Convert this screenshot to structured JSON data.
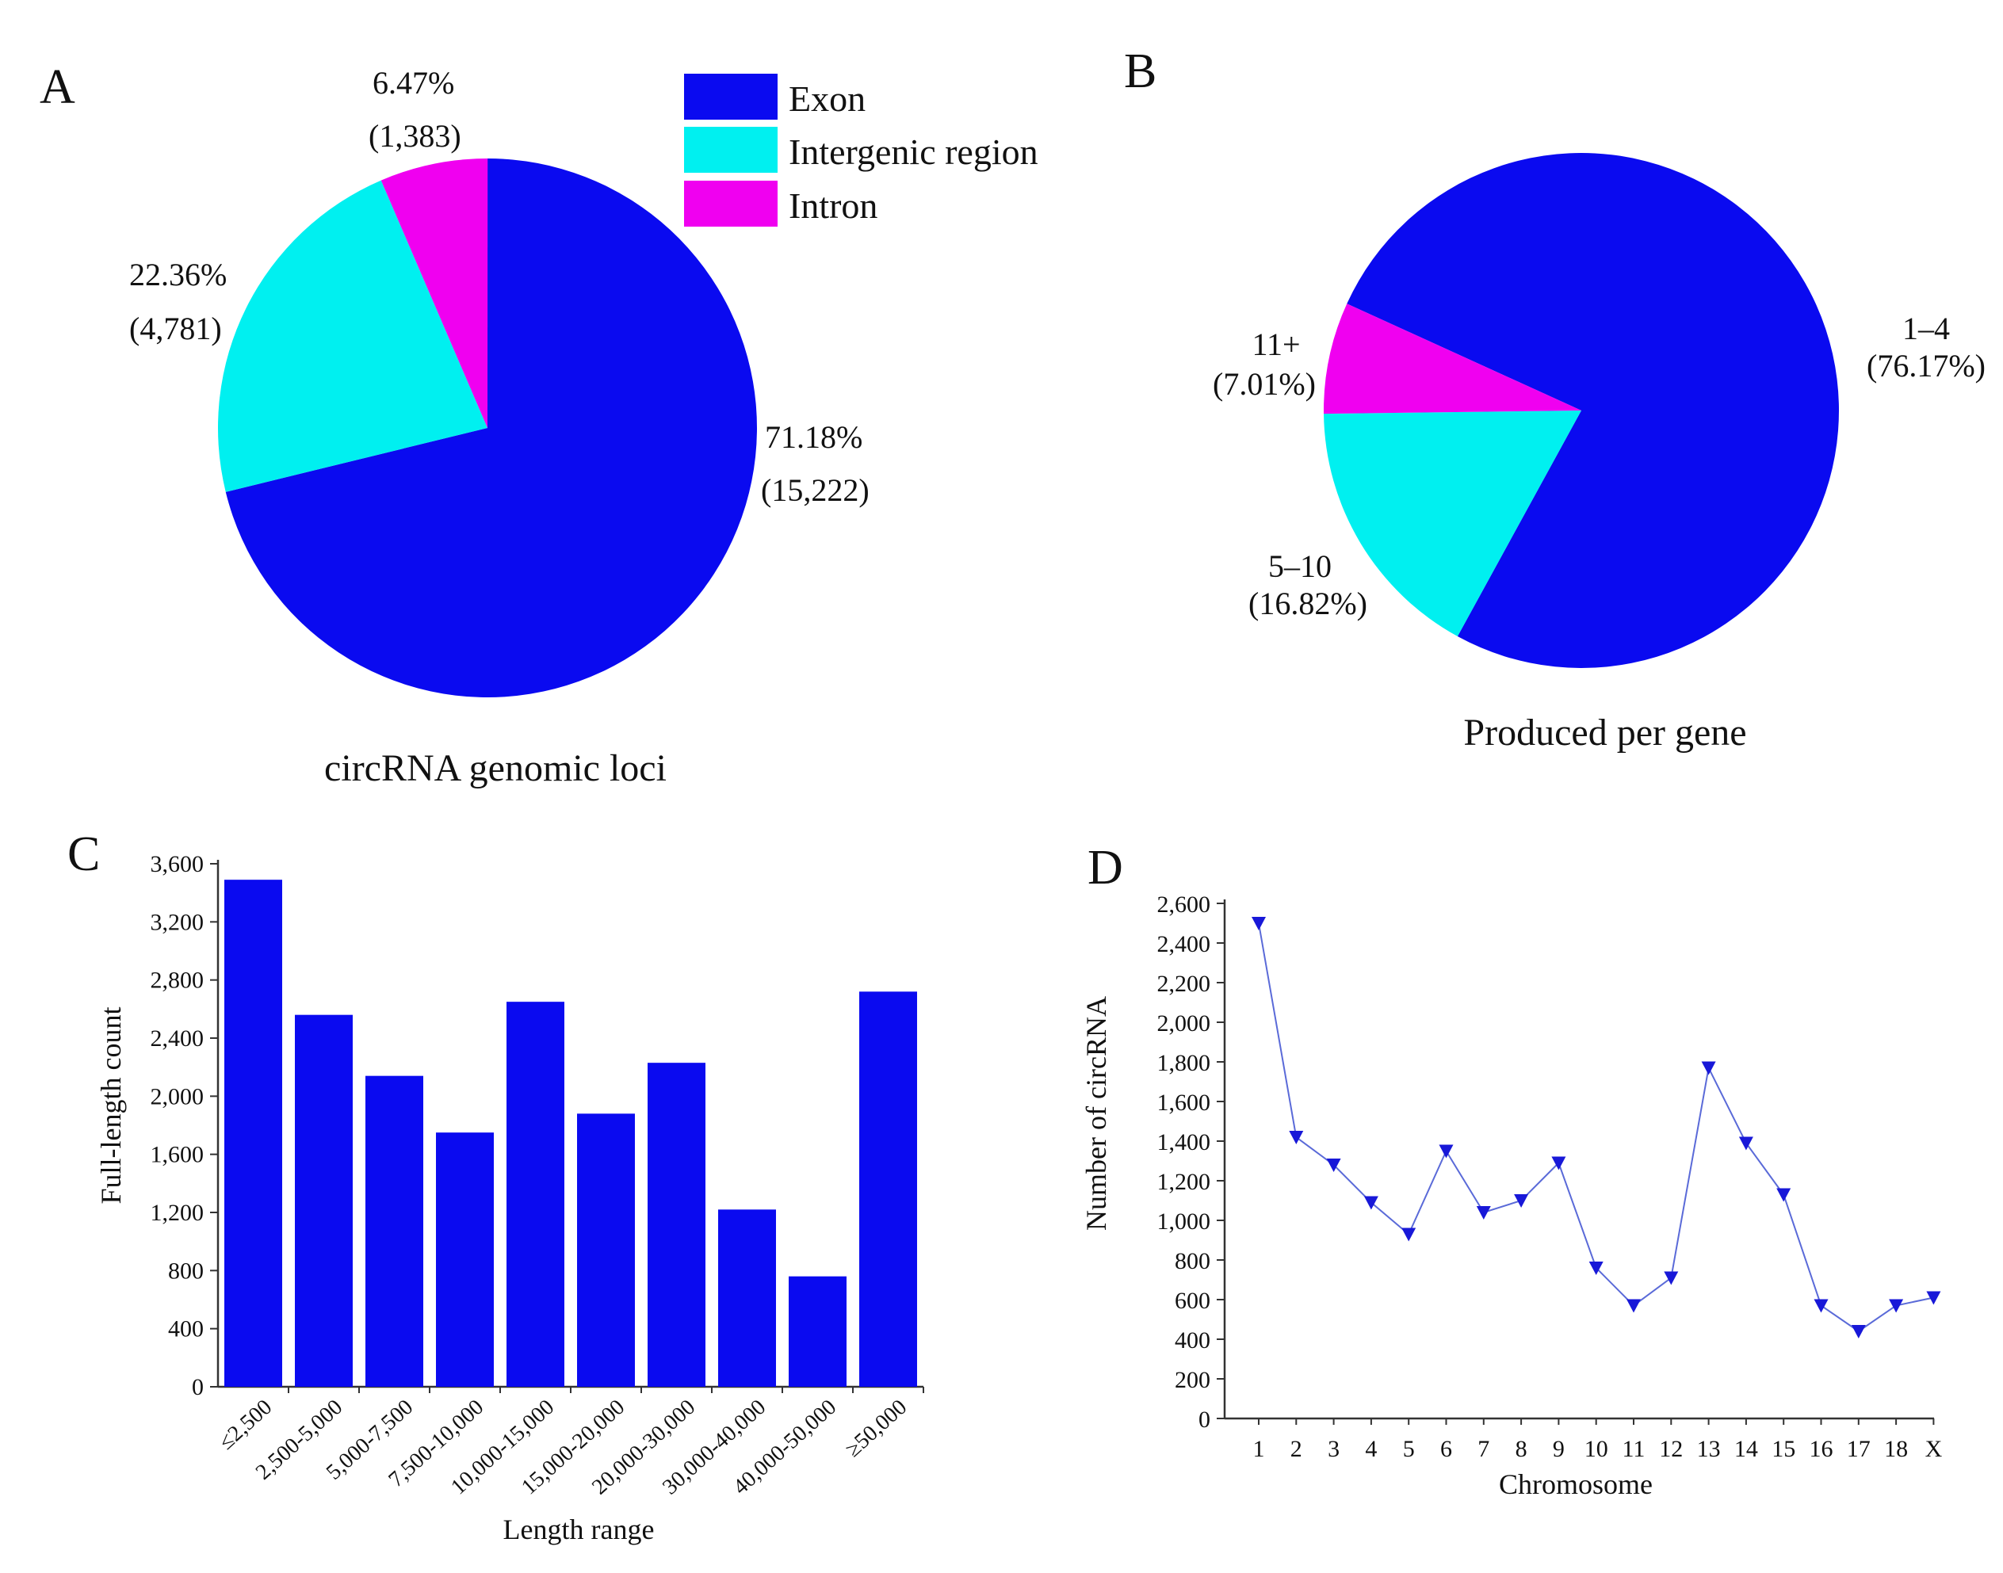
{
  "chart_data": [
    {
      "panel": "A",
      "type": "pie",
      "caption": "circRNA genomic loci",
      "slices": [
        {
          "name": "Exon",
          "percent": 71.18,
          "count": 15222,
          "label": "71.18%",
          "count_label": "(15,222)",
          "color": "#0a0af0"
        },
        {
          "name": "Intergenic region",
          "percent": 22.36,
          "count": 4781,
          "label": "22.36%",
          "count_label": "(4,781)",
          "color": "#00f0f0"
        },
        {
          "name": "Intron",
          "percent": 6.47,
          "count": 1383,
          "label": "6.47%",
          "count_label": "(1,383)",
          "color": "#f000f0"
        }
      ],
      "legend": [
        "Exon",
        "Intergenic region",
        "Intron"
      ],
      "legend_position": "top-right"
    },
    {
      "panel": "B",
      "type": "pie",
      "caption": "Produced per gene",
      "slices": [
        {
          "name": "1–4",
          "percent": 76.17,
          "label": "1–4",
          "value_label": "(76.17%)",
          "color": "#0a0af0"
        },
        {
          "name": "5–10",
          "percent": 16.82,
          "label": "5–10",
          "value_label": "(16.82%)",
          "color": "#00f0f0"
        },
        {
          "name": "11+",
          "percent": 7.01,
          "label": "11+",
          "value_label": "(7.01%)",
          "color": "#f000f0"
        }
      ]
    },
    {
      "panel": "C",
      "type": "bar",
      "categories": [
        "≤2,500",
        "2,500-5,000",
        "5,000-7,500",
        "7,500-10,000",
        "10,000-15,000",
        "15,000-20,000",
        "20,000-30,000",
        "30,000-40,000",
        "40,000-50,000",
        "≥50,000"
      ],
      "values": [
        3490,
        2560,
        2140,
        1750,
        2650,
        1880,
        2230,
        1220,
        760,
        2720
      ],
      "ylim": [
        0,
        3600
      ],
      "yticks": [
        0,
        400,
        800,
        1200,
        1600,
        2000,
        2400,
        2800,
        3200,
        3600
      ],
      "ytick_labels": [
        "0",
        "400",
        "800",
        "1,200",
        "1,600",
        "2,000",
        "2,400",
        "2,800",
        "3,200",
        "3,600"
      ],
      "xlabel": "Length range",
      "ylabel": "Full-length count",
      "color": "#0a0af0"
    },
    {
      "panel": "D",
      "type": "line",
      "categories": [
        "1",
        "2",
        "3",
        "4",
        "5",
        "6",
        "7",
        "8",
        "9",
        "10",
        "11",
        "12",
        "13",
        "14",
        "15",
        "16",
        "17",
        "18",
        "X"
      ],
      "values": [
        2500,
        1420,
        1280,
        1090,
        930,
        1350,
        1040,
        1100,
        1290,
        760,
        570,
        710,
        1770,
        1390,
        1130,
        570,
        440,
        570,
        610
      ],
      "ylim": [
        0,
        2600
      ],
      "yticks": [
        0,
        200,
        400,
        600,
        800,
        1000,
        1200,
        1400,
        1600,
        1800,
        2000,
        2200,
        2400,
        2600
      ],
      "ytick_labels": [
        "0",
        "200",
        "400",
        "600",
        "800",
        "1,000",
        "1,200",
        "1,400",
        "1,600",
        "1,800",
        "2,000",
        "2,200",
        "2,400",
        "2,600"
      ],
      "xlabel": "Chromosome",
      "ylabel": "Number of circRNA",
      "marker": "triangle-down",
      "color": "#1818d8"
    }
  ]
}
